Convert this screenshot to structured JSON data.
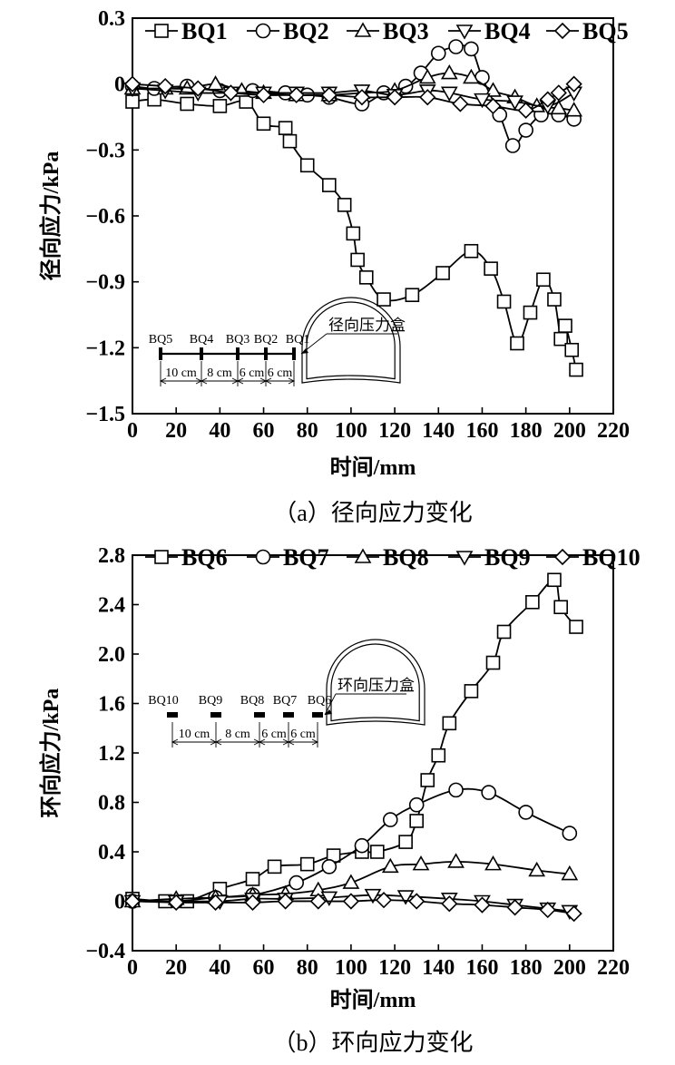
{
  "chart_data": [
    {
      "type": "line",
      "caption": "（a）径向应力变化",
      "xlabel": "时间/mm",
      "ylabel": "径向应力/kPa",
      "xlim": [
        0,
        220
      ],
      "ylim": [
        -1.5,
        0.3
      ],
      "xticks": [
        "0",
        "20",
        "40",
        "60",
        "80",
        "100",
        "120",
        "140",
        "160",
        "180",
        "200",
        "220"
      ],
      "yticks": [
        "0.3",
        "0",
        "−0.3",
        "−0.6",
        "−0.9",
        "−1.2",
        "−1.5"
      ],
      "legend": "top",
      "series": [
        {
          "name": "BQ1",
          "marker": "square",
          "points": [
            [
              0,
              -0.08
            ],
            [
              10,
              -0.07
            ],
            [
              25,
              -0.09
            ],
            [
              40,
              -0.1
            ],
            [
              52,
              -0.08
            ],
            [
              60,
              -0.18
            ],
            [
              70,
              -0.2
            ],
            [
              72,
              -0.26
            ],
            [
              80,
              -0.37
            ],
            [
              90,
              -0.46
            ],
            [
              97,
              -0.55
            ],
            [
              101,
              -0.68
            ],
            [
              103,
              -0.8
            ],
            [
              107,
              -0.88
            ],
            [
              115,
              -0.98
            ],
            [
              128,
              -0.96
            ],
            [
              142,
              -0.86
            ],
            [
              155,
              -0.76
            ],
            [
              164,
              -0.84
            ],
            [
              170,
              -0.99
            ],
            [
              176,
              -1.18
            ],
            [
              182,
              -1.04
            ],
            [
              188,
              -0.89
            ],
            [
              193,
              -0.98
            ],
            [
              196,
              -1.16
            ],
            [
              198,
              -1.1
            ],
            [
              201,
              -1.21
            ],
            [
              203,
              -1.3
            ]
          ]
        },
        {
          "name": "BQ2",
          "marker": "circle",
          "points": [
            [
              0,
              -0.01
            ],
            [
              10,
              -0.02
            ],
            [
              25,
              -0.01
            ],
            [
              40,
              -0.03
            ],
            [
              55,
              -0.03
            ],
            [
              70,
              -0.04
            ],
            [
              80,
              -0.05
            ],
            [
              90,
              -0.06
            ],
            [
              105,
              -0.09
            ],
            [
              115,
              -0.04
            ],
            [
              125,
              -0.01
            ],
            [
              132,
              0.05
            ],
            [
              140,
              0.14
            ],
            [
              148,
              0.17
            ],
            [
              155,
              0.16
            ],
            [
              160,
              0.03
            ],
            [
              168,
              -0.14
            ],
            [
              174,
              -0.28
            ],
            [
              180,
              -0.21
            ],
            [
              187,
              -0.14
            ],
            [
              195,
              -0.14
            ],
            [
              202,
              -0.16
            ]
          ]
        },
        {
          "name": "BQ3",
          "marker": "triangle-up",
          "points": [
            [
              0,
              -0.02
            ],
            [
              15,
              -0.02
            ],
            [
              25,
              -0.02
            ],
            [
              38,
              0.0
            ],
            [
              50,
              -0.03
            ],
            [
              60,
              -0.04
            ],
            [
              75,
              -0.05
            ],
            [
              90,
              -0.05
            ],
            [
              105,
              -0.04
            ],
            [
              120,
              -0.03
            ],
            [
              135,
              0.03
            ],
            [
              145,
              0.05
            ],
            [
              155,
              0.03
            ],
            [
              165,
              -0.03
            ],
            [
              175,
              -0.06
            ],
            [
              185,
              -0.1
            ],
            [
              195,
              -0.11
            ],
            [
              202,
              -0.12
            ]
          ]
        },
        {
          "name": "BQ4",
          "marker": "triangle-down",
          "points": [
            [
              0,
              -0.02
            ],
            [
              15,
              -0.03
            ],
            [
              30,
              -0.04
            ],
            [
              45,
              -0.04
            ],
            [
              60,
              -0.04
            ],
            [
              75,
              -0.04
            ],
            [
              90,
              -0.04
            ],
            [
              105,
              -0.03
            ],
            [
              120,
              -0.05
            ],
            [
              135,
              -0.03
            ],
            [
              145,
              -0.04
            ],
            [
              160,
              -0.07
            ],
            [
              175,
              -0.08
            ],
            [
              190,
              -0.1
            ],
            [
              202,
              -0.04
            ]
          ]
        },
        {
          "name": "BQ5",
          "marker": "diamond",
          "points": [
            [
              0,
              0.0
            ],
            [
              15,
              -0.01
            ],
            [
              30,
              -0.02
            ],
            [
              45,
              -0.04
            ],
            [
              60,
              -0.05
            ],
            [
              75,
              -0.05
            ],
            [
              90,
              -0.05
            ],
            [
              105,
              -0.06
            ],
            [
              120,
              -0.06
            ],
            [
              135,
              -0.06
            ],
            [
              150,
              -0.09
            ],
            [
              165,
              -0.1
            ],
            [
              180,
              -0.12
            ],
            [
              190,
              -0.07
            ],
            [
              195,
              -0.04
            ],
            [
              202,
              0.0
            ]
          ]
        }
      ],
      "inset": {
        "gauges": [
          "BQ5",
          "BQ4",
          "BQ3",
          "BQ2",
          "BQ1"
        ],
        "spacings": [
          "10 cm",
          "8 cm",
          "6 cm",
          "6 cm"
        ],
        "box_label": "径向压力盒"
      }
    },
    {
      "type": "line",
      "caption": "（b）环向应力变化",
      "xlabel": "时间/mm",
      "ylabel": "环向应力/kPa",
      "xlim": [
        0,
        220
      ],
      "ylim": [
        -0.4,
        2.8
      ],
      "xticks": [
        "0",
        "20",
        "40",
        "60",
        "80",
        "100",
        "120",
        "140",
        "160",
        "180",
        "200",
        "220"
      ],
      "yticks": [
        "2.8",
        "2.4",
        "2.0",
        "1.6",
        "1.2",
        "0.8",
        "0.4",
        "0",
        "−0.4"
      ],
      "legend": "top",
      "series": [
        {
          "name": "BQ6",
          "marker": "square",
          "points": [
            [
              0,
              0.02
            ],
            [
              15,
              0.0
            ],
            [
              25,
              0.0
            ],
            [
              40,
              0.1
            ],
            [
              55,
              0.18
            ],
            [
              65,
              0.28
            ],
            [
              80,
              0.3
            ],
            [
              92,
              0.37
            ],
            [
              105,
              0.4
            ],
            [
              112,
              0.4
            ],
            [
              125,
              0.48
            ],
            [
              130,
              0.65
            ],
            [
              135,
              0.98
            ],
            [
              140,
              1.18
            ],
            [
              145,
              1.44
            ],
            [
              155,
              1.7
            ],
            [
              165,
              1.93
            ],
            [
              170,
              2.18
            ],
            [
              183,
              2.42
            ],
            [
              193,
              2.6
            ],
            [
              196,
              2.38
            ],
            [
              203,
              2.22
            ]
          ]
        },
        {
          "name": "BQ7",
          "marker": "circle",
          "points": [
            [
              0,
              0.0
            ],
            [
              20,
              0.0
            ],
            [
              38,
              0.03
            ],
            [
              55,
              0.05
            ],
            [
              75,
              0.15
            ],
            [
              90,
              0.28
            ],
            [
              105,
              0.45
            ],
            [
              118,
              0.66
            ],
            [
              130,
              0.78
            ],
            [
              148,
              0.9
            ],
            [
              163,
              0.88
            ],
            [
              180,
              0.72
            ],
            [
              200,
              0.55
            ]
          ]
        },
        {
          "name": "BQ8",
          "marker": "triangle-up",
          "points": [
            [
              0,
              0.0
            ],
            [
              20,
              0.02
            ],
            [
              38,
              0.03
            ],
            [
              55,
              0.05
            ],
            [
              70,
              0.06
            ],
            [
              85,
              0.09
            ],
            [
              100,
              0.15
            ],
            [
              118,
              0.28
            ],
            [
              132,
              0.3
            ],
            [
              148,
              0.32
            ],
            [
              165,
              0.3
            ],
            [
              185,
              0.25
            ],
            [
              200,
              0.22
            ]
          ]
        },
        {
          "name": "BQ9",
          "marker": "triangle-down",
          "points": [
            [
              0,
              0.0
            ],
            [
              20,
              0.0
            ],
            [
              40,
              0.0
            ],
            [
              55,
              0.02
            ],
            [
              70,
              0.02
            ],
            [
              90,
              0.03
            ],
            [
              110,
              0.05
            ],
            [
              125,
              0.04
            ],
            [
              145,
              0.02
            ],
            [
              160,
              0.0
            ],
            [
              175,
              -0.03
            ],
            [
              190,
              -0.06
            ],
            [
              200,
              -0.08
            ]
          ]
        },
        {
          "name": "BQ10",
          "marker": "diamond",
          "points": [
            [
              0,
              0.0
            ],
            [
              20,
              -0.01
            ],
            [
              38,
              -0.01
            ],
            [
              55,
              -0.01
            ],
            [
              70,
              0.0
            ],
            [
              85,
              0.0
            ],
            [
              100,
              0.0
            ],
            [
              115,
              0.01
            ],
            [
              130,
              0.0
            ],
            [
              145,
              -0.02
            ],
            [
              160,
              -0.03
            ],
            [
              175,
              -0.05
            ],
            [
              190,
              -0.07
            ],
            [
              202,
              -0.1
            ]
          ]
        }
      ],
      "inset": {
        "gauges": [
          "BQ10",
          "BQ9",
          "BQ8",
          "BQ7",
          "BQ6"
        ],
        "spacings": [
          "10 cm",
          "8 cm",
          "6 cm",
          "6 cm"
        ],
        "box_label": "环向压力盒"
      }
    }
  ]
}
